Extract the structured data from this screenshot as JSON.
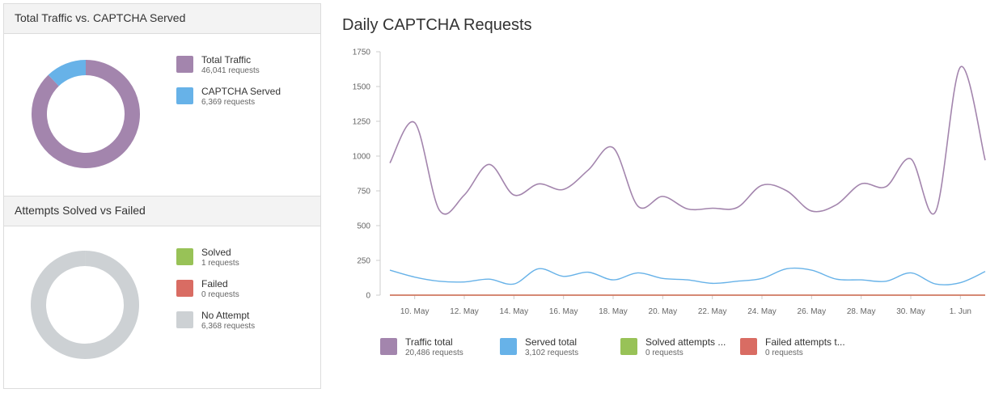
{
  "colors": {
    "traffic": "#a385ad",
    "served": "#67b2e8",
    "solved": "#98c257",
    "failed": "#d96c63",
    "no_attempt": "#cdd1d4",
    "axis_text": "#666666",
    "baseline": "#d96c63"
  },
  "panels": {
    "traffic_vs_captcha": {
      "title": "Total Traffic vs. CAPTCHA Served",
      "legend": [
        {
          "name": "Total Traffic",
          "sub": "46,041 requests"
        },
        {
          "name": "CAPTCHA Served",
          "sub": "6,369 requests"
        }
      ]
    },
    "solved_vs_failed": {
      "title": "Attempts Solved vs Failed",
      "legend": [
        {
          "name": "Solved",
          "sub": "1 requests"
        },
        {
          "name": "Failed",
          "sub": "0 requests"
        },
        {
          "name": "No Attempt",
          "sub": "6,368 requests"
        }
      ]
    }
  },
  "main_chart": {
    "title": "Daily CAPTCHA Requests",
    "legend": [
      {
        "name": "Traffic total",
        "sub": "20,486 requests"
      },
      {
        "name": "Served total",
        "sub": "3,102 requests"
      },
      {
        "name": "Solved attempts ...",
        "sub": "0 requests"
      },
      {
        "name": "Failed attempts t...",
        "sub": "0 requests"
      }
    ]
  },
  "chart_data": [
    {
      "type": "pie",
      "title": "Total Traffic vs. CAPTCHA Served",
      "donut": true,
      "categories": [
        "Total Traffic",
        "CAPTCHA Served"
      ],
      "values": [
        46041,
        6369
      ]
    },
    {
      "type": "pie",
      "title": "Attempts Solved vs Failed",
      "donut": true,
      "categories": [
        "Solved",
        "Failed",
        "No Attempt"
      ],
      "values": [
        1,
        0,
        6368
      ]
    },
    {
      "type": "line",
      "title": "Daily CAPTCHA Requests",
      "xlabel": "",
      "ylabel": "",
      "ylim": [
        0,
        1750
      ],
      "yticks": [
        0,
        250,
        500,
        750,
        1000,
        1250,
        1500,
        1750
      ],
      "x": [
        "9. May",
        "10. May",
        "11. May",
        "12. May",
        "13. May",
        "14. May",
        "15. May",
        "16. May",
        "17. May",
        "18. May",
        "19. May",
        "20. May",
        "21. May",
        "22. May",
        "23. May",
        "24. May",
        "25. May",
        "26. May",
        "27. May",
        "28. May",
        "29. May",
        "30. May",
        "31. May",
        "1. Jun",
        "2. Jun"
      ],
      "xticks": [
        "10. May",
        "12. May",
        "14. May",
        "16. May",
        "18. May",
        "20. May",
        "22. May",
        "24. May",
        "26. May",
        "28. May",
        "30. May",
        "1. Jun"
      ],
      "grid": false,
      "legend": "bottom",
      "series": [
        {
          "name": "Traffic total",
          "values": [
            950,
            1240,
            610,
            720,
            940,
            720,
            800,
            760,
            900,
            1060,
            640,
            710,
            620,
            625,
            630,
            790,
            750,
            605,
            650,
            800,
            780,
            980,
            600,
            1640,
            970
          ]
        },
        {
          "name": "Served total",
          "values": [
            180,
            130,
            100,
            95,
            115,
            80,
            190,
            135,
            165,
            110,
            160,
            120,
            110,
            85,
            100,
            120,
            190,
            180,
            115,
            110,
            100,
            160,
            80,
            90,
            170
          ]
        },
        {
          "name": "Solved attempts ...",
          "values": [
            0,
            0,
            0,
            0,
            0,
            0,
            0,
            0,
            0,
            0,
            0,
            0,
            0,
            0,
            0,
            0,
            0,
            0,
            0,
            0,
            0,
            0,
            0,
            0,
            0
          ]
        },
        {
          "name": "Failed attempts t...",
          "values": [
            0,
            0,
            0,
            0,
            0,
            0,
            0,
            0,
            0,
            0,
            0,
            0,
            0,
            0,
            0,
            0,
            0,
            0,
            0,
            0,
            0,
            0,
            0,
            0,
            0
          ]
        }
      ]
    }
  ]
}
